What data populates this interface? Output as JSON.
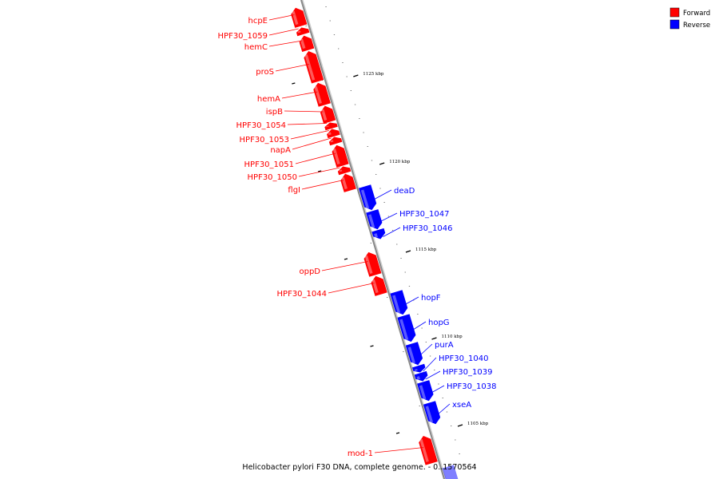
{
  "title": "Helicobacter pylori F30 DNA, complete genome. - 0..1570564",
  "legend": [
    {
      "label": "Forward",
      "color": "#ff0000"
    },
    {
      "label": "Reverse",
      "color": "#0000ff"
    }
  ],
  "colors": {
    "forward": "#ff0000",
    "reverse": "#0000ff",
    "backbone": "#888888"
  },
  "ticks": [
    "1125 kbp",
    "1120 kbp",
    "1115 kbp",
    "1110 kbp",
    "1105 kbp"
  ],
  "genes": [
    {
      "name": "hcpE",
      "strand": "forward"
    },
    {
      "name": "HPF30_1059",
      "strand": "forward"
    },
    {
      "name": "hemC",
      "strand": "forward"
    },
    {
      "name": "proS",
      "strand": "forward"
    },
    {
      "name": "hemA",
      "strand": "forward"
    },
    {
      "name": "ispB",
      "strand": "forward"
    },
    {
      "name": "HPF30_1054",
      "strand": "forward"
    },
    {
      "name": "HPF30_1053",
      "strand": "forward"
    },
    {
      "name": "napA",
      "strand": "forward"
    },
    {
      "name": "HPF30_1051",
      "strand": "forward"
    },
    {
      "name": "HPF30_1050",
      "strand": "forward"
    },
    {
      "name": "flgI",
      "strand": "forward"
    },
    {
      "name": "deaD",
      "strand": "reverse"
    },
    {
      "name": "HPF30_1047",
      "strand": "reverse"
    },
    {
      "name": "HPF30_1046",
      "strand": "reverse"
    },
    {
      "name": "oppD",
      "strand": "forward"
    },
    {
      "name": "HPF30_1044",
      "strand": "forward"
    },
    {
      "name": "hopF",
      "strand": "reverse"
    },
    {
      "name": "hopG",
      "strand": "reverse"
    },
    {
      "name": "purA",
      "strand": "reverse"
    },
    {
      "name": "HPF30_1040",
      "strand": "reverse"
    },
    {
      "name": "HPF30_1039",
      "strand": "reverse"
    },
    {
      "name": "HPF30_1038",
      "strand": "reverse"
    },
    {
      "name": "xseA",
      "strand": "reverse"
    },
    {
      "name": "mod-1",
      "strand": "forward"
    }
  ]
}
